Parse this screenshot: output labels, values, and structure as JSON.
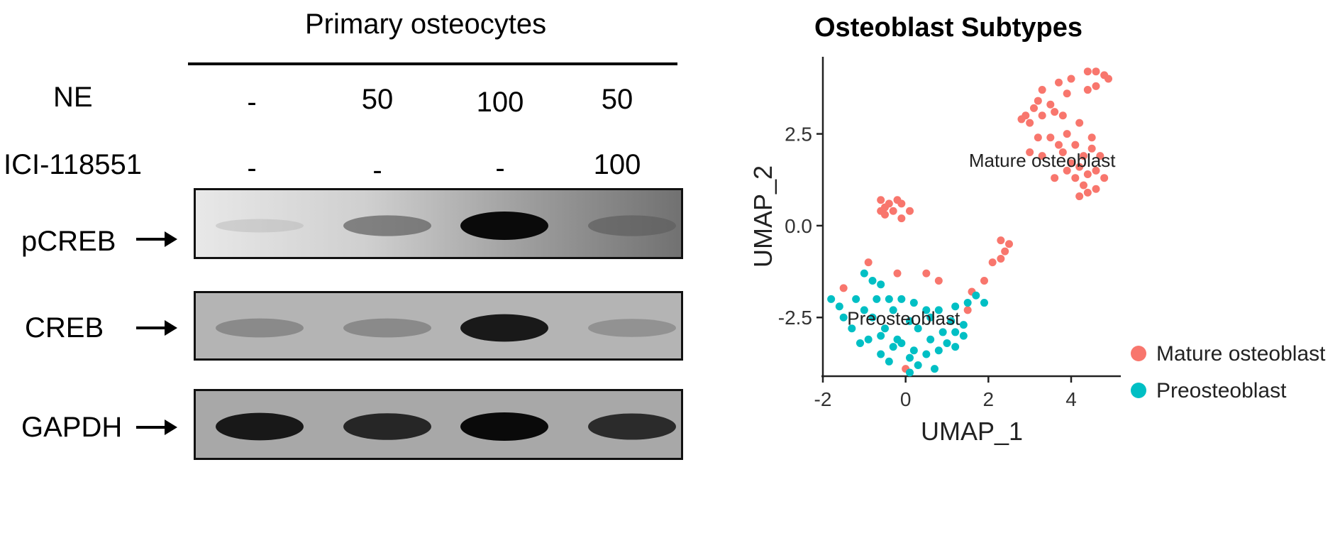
{
  "western_blot": {
    "title": "Primary osteocytes",
    "conditions": [
      {
        "label": "NE",
        "values": [
          "-",
          "50",
          "100",
          "50"
        ]
      },
      {
        "label": "ICI-118551",
        "values": [
          "-",
          "-",
          "-",
          "100"
        ]
      }
    ],
    "bands": [
      {
        "label": "pCREB",
        "intensity": [
          0.12,
          0.55,
          1.0,
          0.55
        ]
      },
      {
        "label": "CREB",
        "intensity": [
          0.45,
          0.45,
          0.95,
          0.4
        ]
      },
      {
        "label": "GAPDH",
        "intensity": [
          0.95,
          0.9,
          1.0,
          0.88
        ]
      }
    ]
  },
  "chart_data": {
    "type": "scatter",
    "title": "Osteoblast Subtypes",
    "xlabel": "UMAP_1",
    "ylabel": "UMAP_2",
    "xlim": [
      -2.0,
      5.2
    ],
    "ylim": [
      -4.1,
      4.6
    ],
    "xticks": [
      "-2",
      "0",
      "2",
      "4"
    ],
    "xtick_values": [
      -2,
      0,
      2,
      4
    ],
    "yticks": [
      "2.5",
      "0.0",
      "-2.5"
    ],
    "ytick_values": [
      2.5,
      0.0,
      -2.5
    ],
    "legend_position": "right",
    "annotations": [
      {
        "text": "Mature osteoblast",
        "x": 3.3,
        "y": 1.6
      },
      {
        "text": "Preosteoblast",
        "x": -0.05,
        "y": -2.7
      }
    ],
    "series": [
      {
        "name": "Mature osteoblast",
        "color": "#F8766D",
        "points": [
          [
            4.4,
            4.2
          ],
          [
            4.6,
            4.2
          ],
          [
            4.8,
            4.1
          ],
          [
            4.9,
            4.0
          ],
          [
            4.0,
            4.0
          ],
          [
            3.7,
            3.9
          ],
          [
            4.4,
            3.7
          ],
          [
            4.6,
            3.8
          ],
          [
            3.3,
            3.7
          ],
          [
            3.9,
            3.6
          ],
          [
            3.2,
            3.4
          ],
          [
            3.5,
            3.3
          ],
          [
            3.1,
            3.2
          ],
          [
            3.6,
            3.1
          ],
          [
            3.8,
            3.0
          ],
          [
            2.9,
            3.0
          ],
          [
            3.3,
            3.0
          ],
          [
            2.8,
            2.9
          ],
          [
            3.0,
            2.8
          ],
          [
            4.2,
            2.8
          ],
          [
            3.9,
            2.5
          ],
          [
            3.2,
            2.4
          ],
          [
            3.5,
            2.4
          ],
          [
            4.5,
            2.4
          ],
          [
            3.7,
            2.2
          ],
          [
            4.1,
            2.2
          ],
          [
            4.5,
            2.1
          ],
          [
            3.0,
            2.0
          ],
          [
            3.3,
            1.9
          ],
          [
            3.8,
            2.0
          ],
          [
            4.3,
            1.9
          ],
          [
            4.7,
            1.9
          ],
          [
            4.0,
            1.7
          ],
          [
            4.2,
            1.6
          ],
          [
            4.6,
            1.5
          ],
          [
            3.9,
            1.5
          ],
          [
            4.4,
            1.4
          ],
          [
            3.6,
            1.3
          ],
          [
            4.1,
            1.3
          ],
          [
            4.8,
            1.3
          ],
          [
            4.3,
            1.1
          ],
          [
            4.6,
            1.0
          ],
          [
            4.2,
            0.8
          ],
          [
            4.4,
            0.9
          ],
          [
            -0.6,
            0.7
          ],
          [
            -0.4,
            0.6
          ],
          [
            -0.2,
            0.7
          ],
          [
            -0.5,
            0.5
          ],
          [
            -0.1,
            0.6
          ],
          [
            -0.6,
            0.4
          ],
          [
            -0.3,
            0.4
          ],
          [
            0.1,
            0.4
          ],
          [
            -0.5,
            0.3
          ],
          [
            -0.1,
            0.2
          ],
          [
            2.3,
            -0.4
          ],
          [
            2.5,
            -0.5
          ],
          [
            2.4,
            -0.7
          ],
          [
            2.3,
            -0.9
          ],
          [
            2.1,
            -1.0
          ],
          [
            1.9,
            -1.5
          ],
          [
            1.6,
            -1.8
          ],
          [
            -0.9,
            -1.0
          ],
          [
            -0.2,
            -1.3
          ],
          [
            0.5,
            -1.3
          ],
          [
            0.8,
            -1.5
          ],
          [
            -1.5,
            -1.7
          ],
          [
            1.5,
            -2.3
          ],
          [
            0.0,
            -3.9
          ]
        ]
      },
      {
        "name": "Preosteoblast",
        "color": "#00BFC4",
        "points": [
          [
            -1.0,
            -1.3
          ],
          [
            -0.8,
            -1.5
          ],
          [
            -0.6,
            -1.6
          ],
          [
            -1.8,
            -2.0
          ],
          [
            -1.2,
            -2.0
          ],
          [
            -0.7,
            -2.0
          ],
          [
            -0.4,
            -2.0
          ],
          [
            -0.1,
            -2.0
          ],
          [
            0.2,
            -2.1
          ],
          [
            -1.6,
            -2.2
          ],
          [
            -1.0,
            -2.3
          ],
          [
            -0.3,
            -2.3
          ],
          [
            0.5,
            -2.3
          ],
          [
            0.8,
            -2.3
          ],
          [
            1.2,
            -2.2
          ],
          [
            1.5,
            -2.1
          ],
          [
            1.9,
            -2.1
          ],
          [
            1.7,
            -1.9
          ],
          [
            -1.5,
            -2.5
          ],
          [
            -0.8,
            -2.5
          ],
          [
            0.1,
            -2.6
          ],
          [
            0.6,
            -2.5
          ],
          [
            1.1,
            -2.6
          ],
          [
            1.4,
            -2.7
          ],
          [
            -1.3,
            -2.8
          ],
          [
            -0.5,
            -2.8
          ],
          [
            0.3,
            -2.8
          ],
          [
            0.9,
            -2.9
          ],
          [
            1.2,
            -2.9
          ],
          [
            -0.9,
            -3.1
          ],
          [
            -0.6,
            -3.0
          ],
          [
            -0.2,
            -3.1
          ],
          [
            0.6,
            -3.1
          ],
          [
            1.0,
            -3.2
          ],
          [
            -1.1,
            -3.2
          ],
          [
            -0.3,
            -3.3
          ],
          [
            0.2,
            -3.4
          ],
          [
            0.8,
            -3.4
          ],
          [
            1.2,
            -3.3
          ],
          [
            -0.6,
            -3.5
          ],
          [
            0.1,
            -3.6
          ],
          [
            0.5,
            -3.5
          ],
          [
            -0.4,
            -3.7
          ],
          [
            0.3,
            -3.8
          ],
          [
            0.7,
            -3.9
          ],
          [
            0.1,
            -4.0
          ],
          [
            -0.1,
            -3.2
          ],
          [
            1.4,
            -3.0
          ]
        ]
      }
    ]
  }
}
